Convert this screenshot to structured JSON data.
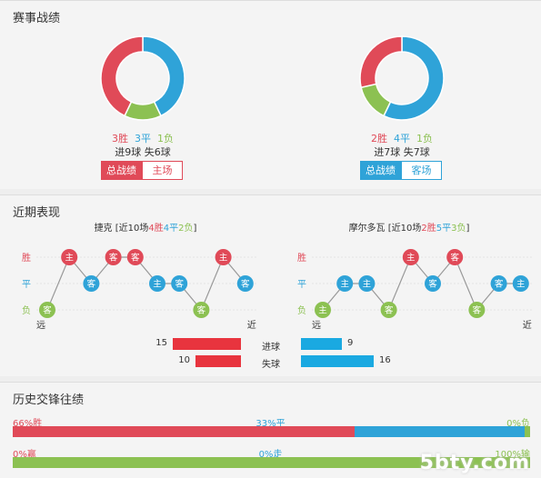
{
  "section1": {
    "title": "赛事战绩",
    "left": {
      "wins": "3胜",
      "draws": "3平",
      "losses": "1负",
      "win": 3,
      "draw": 3,
      "loss": 1,
      "goals": "进9球  失6球",
      "btn_total": "总战绩",
      "btn_venue": "主场"
    },
    "right": {
      "wins": "2胜",
      "draws": "4平",
      "losses": "1负",
      "win": 2,
      "draw": 4,
      "loss": 1,
      "goals": "进7球  失7球",
      "btn_total": "总战绩",
      "btn_venue": "客场"
    }
  },
  "section2": {
    "title": "近期表现",
    "left": {
      "team": "捷克",
      "summary_pre": "[近10场",
      "w": "4胜",
      "d": "4平",
      "l": "2负",
      "summary_post": "]",
      "results": [
        "L",
        "W",
        "D",
        "W",
        "W",
        "D",
        "D",
        "L",
        "W",
        "D"
      ],
      "venues": [
        "客",
        "主",
        "客",
        "客",
        "客",
        "主",
        "客",
        "客",
        "主",
        "客"
      ]
    },
    "right": {
      "team": "摩尔多瓦",
      "summary_pre": "[近10场",
      "w": "2胜",
      "d": "5平",
      "l": "3负",
      "summary_post": "]",
      "results": [
        "L",
        "D",
        "D",
        "L",
        "W",
        "D",
        "W",
        "L",
        "D",
        "D"
      ],
      "venues": [
        "主",
        "主",
        "主",
        "客",
        "主",
        "客",
        "客",
        "客",
        "客",
        "主"
      ]
    },
    "y_labels": {
      "win": "胜",
      "draw": "平",
      "loss": "负"
    },
    "far": "远",
    "near": "近",
    "goals_for_label": "进球",
    "goals_against_label": "失球",
    "left_for": 15,
    "left_against": 10,
    "right_for": 9,
    "right_against": 16,
    "left_for_text": "15",
    "left_against_text": "10",
    "right_for_text": "9",
    "right_against_text": "16"
  },
  "section3": {
    "title": "历史交锋往绩",
    "row1": {
      "left": "66%胜",
      "mid": "33%平",
      "right": "0%负",
      "win": 66,
      "draw": 33,
      "loss": 0
    },
    "row2": {
      "left": "0%赢",
      "mid": "0%走",
      "right": "100%输",
      "win": 0,
      "draw": 0,
      "loss": 100
    }
  },
  "colors": {
    "red": "#e04a58",
    "blue": "#2fa3d8",
    "green": "#8cc152"
  },
  "watermark": "5bty.com"
}
